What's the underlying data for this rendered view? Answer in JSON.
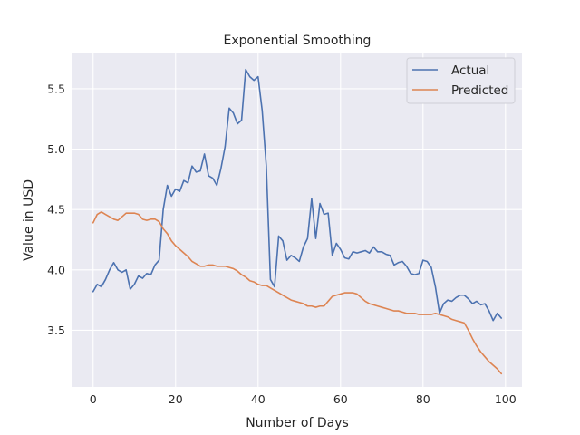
{
  "chart_data": {
    "type": "line",
    "title": "Exponential Smoothing",
    "xlabel": "Number of Days",
    "ylabel": "Value in USD",
    "xlim": [
      -5,
      104
    ],
    "ylim": [
      3.03,
      5.8
    ],
    "xticks": [
      0,
      20,
      40,
      60,
      80,
      100
    ],
    "yticks": [
      3.5,
      4.0,
      4.5,
      5.0,
      5.5
    ],
    "xtick_labels": [
      "0",
      "20",
      "40",
      "60",
      "80",
      "100"
    ],
    "ytick_labels": [
      "3.5",
      "4.0",
      "4.5",
      "5.0",
      "5.5"
    ],
    "grid": true,
    "legend_position": "top-right",
    "series": [
      {
        "name": "Actual",
        "color": "#4c72b0",
        "x": [
          0,
          1,
          2,
          3,
          4,
          5,
          6,
          7,
          8,
          9,
          10,
          11,
          12,
          13,
          14,
          15,
          16,
          17,
          18,
          19,
          20,
          21,
          22,
          23,
          24,
          25,
          26,
          27,
          28,
          29,
          30,
          31,
          32,
          33,
          34,
          35,
          36,
          37,
          38,
          39,
          40,
          41,
          42,
          43,
          44,
          45,
          46,
          47,
          48,
          49,
          50,
          51,
          52,
          53,
          54,
          55,
          56,
          57,
          58,
          59,
          60,
          61,
          62,
          63,
          64,
          65,
          66,
          67,
          68,
          69,
          70,
          71,
          72,
          73,
          74,
          75,
          76,
          77,
          78,
          79,
          80,
          81,
          82,
          83,
          84,
          85,
          86,
          87,
          88,
          89,
          90,
          91,
          92,
          93,
          94,
          95,
          96,
          97,
          98,
          99
        ],
        "values": [
          3.82,
          3.88,
          3.86,
          3.92,
          4.0,
          4.06,
          4.0,
          3.98,
          4.0,
          3.84,
          3.88,
          3.95,
          3.93,
          3.97,
          3.96,
          4.04,
          4.08,
          4.5,
          4.7,
          4.61,
          4.67,
          4.65,
          4.74,
          4.72,
          4.86,
          4.81,
          4.82,
          4.96,
          4.78,
          4.76,
          4.7,
          4.84,
          5.02,
          5.34,
          5.3,
          5.21,
          5.24,
          5.66,
          5.6,
          5.57,
          5.6,
          5.32,
          4.86,
          3.92,
          3.86,
          4.28,
          4.24,
          4.08,
          4.12,
          4.1,
          4.07,
          4.19,
          4.26,
          4.59,
          4.26,
          4.55,
          4.46,
          4.47,
          4.12,
          4.22,
          4.17,
          4.1,
          4.09,
          4.15,
          4.14,
          4.15,
          4.16,
          4.14,
          4.19,
          4.15,
          4.15,
          4.13,
          4.12,
          4.04,
          4.06,
          4.07,
          4.03,
          3.97,
          3.96,
          3.97,
          4.08,
          4.07,
          4.02,
          3.86,
          3.64,
          3.72,
          3.75,
          3.74,
          3.77,
          3.79,
          3.79,
          3.76,
          3.72,
          3.74,
          3.71,
          3.72,
          3.66,
          3.58,
          3.64,
          3.6
        ]
      },
      {
        "name": "Predicted",
        "color": "#dd8452",
        "x": [
          0,
          1,
          2,
          3,
          4,
          5,
          6,
          7,
          8,
          9,
          10,
          11,
          12,
          13,
          14,
          15,
          16,
          17,
          18,
          19,
          20,
          21,
          22,
          23,
          24,
          25,
          26,
          27,
          28,
          29,
          30,
          31,
          32,
          33,
          34,
          35,
          36,
          37,
          38,
          39,
          40,
          41,
          42,
          43,
          44,
          45,
          46,
          47,
          48,
          49,
          50,
          51,
          52,
          53,
          54,
          55,
          56,
          57,
          58,
          59,
          60,
          61,
          62,
          63,
          64,
          65,
          66,
          67,
          68,
          69,
          70,
          71,
          72,
          73,
          74,
          75,
          76,
          77,
          78,
          79,
          80,
          81,
          82,
          83,
          84,
          85,
          86,
          87,
          88,
          89,
          90,
          91,
          92,
          93,
          94,
          95,
          96,
          97,
          98,
          99
        ],
        "values": [
          4.39,
          4.46,
          4.48,
          4.46,
          4.44,
          4.42,
          4.41,
          4.44,
          4.47,
          4.47,
          4.47,
          4.46,
          4.42,
          4.41,
          4.42,
          4.42,
          4.4,
          4.34,
          4.3,
          4.24,
          4.2,
          4.17,
          4.14,
          4.11,
          4.07,
          4.05,
          4.03,
          4.03,
          4.04,
          4.04,
          4.03,
          4.03,
          4.03,
          4.02,
          4.01,
          3.99,
          3.96,
          3.94,
          3.91,
          3.9,
          3.88,
          3.87,
          3.87,
          3.85,
          3.83,
          3.81,
          3.79,
          3.77,
          3.75,
          3.74,
          3.73,
          3.72,
          3.7,
          3.7,
          3.69,
          3.7,
          3.7,
          3.74,
          3.78,
          3.79,
          3.8,
          3.81,
          3.81,
          3.81,
          3.8,
          3.77,
          3.74,
          3.72,
          3.71,
          3.7,
          3.69,
          3.68,
          3.67,
          3.66,
          3.66,
          3.65,
          3.64,
          3.64,
          3.64,
          3.63,
          3.63,
          3.63,
          3.63,
          3.64,
          3.63,
          3.62,
          3.61,
          3.59,
          3.58,
          3.57,
          3.56,
          3.5,
          3.43,
          3.37,
          3.32,
          3.28,
          3.24,
          3.21,
          3.18,
          3.14
        ]
      }
    ]
  }
}
